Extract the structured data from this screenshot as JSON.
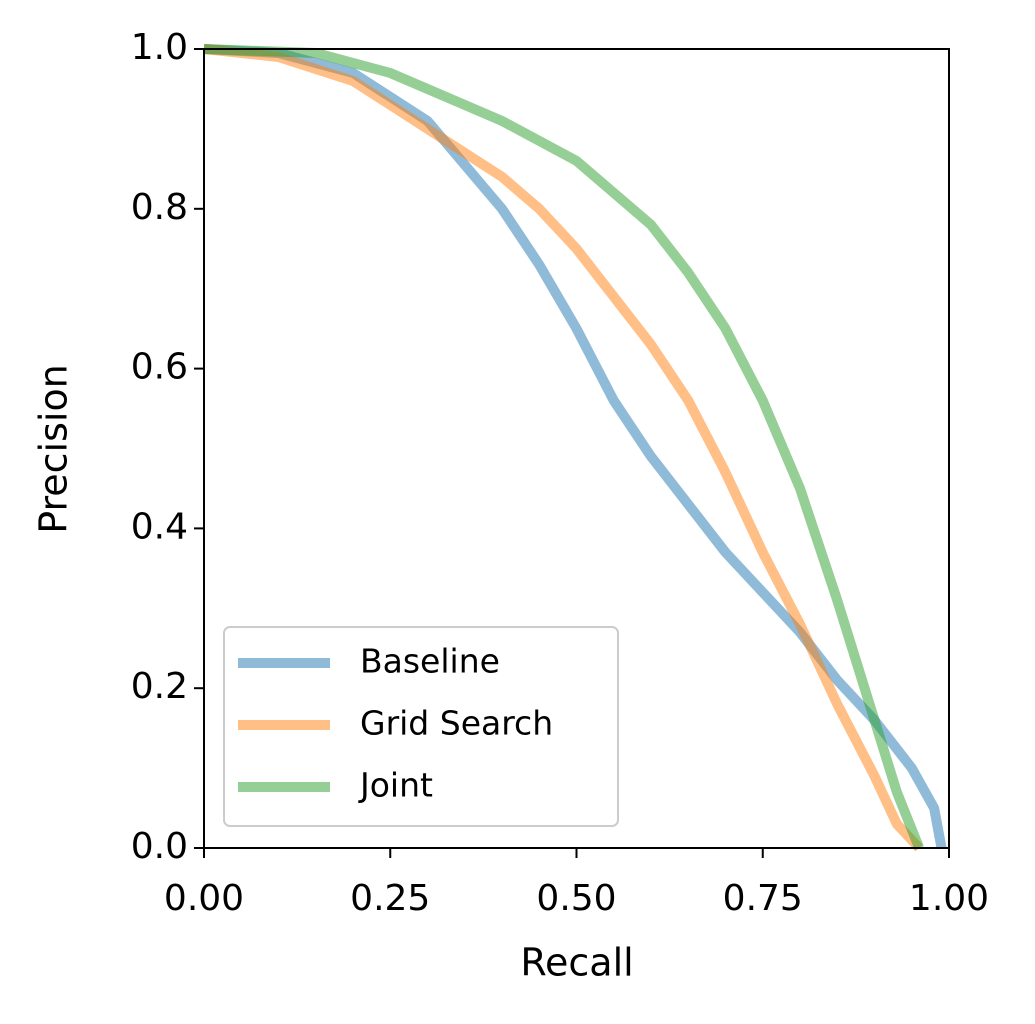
{
  "chart_data": {
    "type": "line",
    "x_label": "Recall",
    "y_label": "Precision",
    "xlim": [
      0,
      1
    ],
    "ylim": [
      0,
      1
    ],
    "xticks": [
      {
        "value": 0,
        "label": "0.00"
      },
      0.25,
      {
        "value": 0.5,
        "label": "0.50"
      },
      0.75,
      {
        "value": 1,
        "label": "1.00"
      }
    ],
    "yticks": [
      {
        "value": 0,
        "label": "0.0"
      },
      0.2,
      0.4,
      0.6,
      0.8,
      {
        "value": 1,
        "label": "1.0"
      }
    ],
    "legend": "lower left",
    "series": [
      {
        "name": "Baseline",
        "color": "#1f77b4",
        "x": [
          0,
          0.1,
          0.2,
          0.3,
          0.4,
          0.45,
          0.5,
          0.55,
          0.6,
          0.65,
          0.7,
          0.75,
          0.8,
          0.85,
          0.9,
          0.95,
          0.98,
          0.99
        ],
        "values": [
          1.0,
          0.995,
          0.97,
          0.91,
          0.8,
          0.73,
          0.65,
          0.56,
          0.49,
          0.43,
          0.37,
          0.32,
          0.27,
          0.21,
          0.16,
          0.1,
          0.05,
          0.0
        ]
      },
      {
        "name": "Grid Search",
        "color": "#ff7f0e",
        "x": [
          0,
          0.1,
          0.2,
          0.3,
          0.4,
          0.45,
          0.5,
          0.55,
          0.6,
          0.65,
          0.7,
          0.75,
          0.8,
          0.85,
          0.9,
          0.93,
          0.96
        ],
        "values": [
          1.0,
          0.99,
          0.96,
          0.9,
          0.84,
          0.8,
          0.75,
          0.69,
          0.63,
          0.56,
          0.47,
          0.37,
          0.28,
          0.18,
          0.09,
          0.03,
          0.0
        ]
      },
      {
        "name": "Joint",
        "color": "#2ca02c",
        "x": [
          0,
          0.15,
          0.25,
          0.35,
          0.4,
          0.5,
          0.6,
          0.65,
          0.7,
          0.75,
          0.8,
          0.85,
          0.9,
          0.93,
          0.96
        ],
        "values": [
          1.0,
          0.995,
          0.97,
          0.93,
          0.91,
          0.86,
          0.78,
          0.72,
          0.65,
          0.56,
          0.45,
          0.31,
          0.16,
          0.07,
          0.0
        ]
      }
    ]
  }
}
